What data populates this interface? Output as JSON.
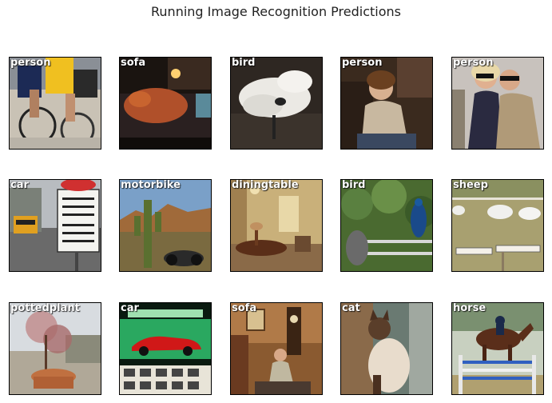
{
  "title": "Running Image Recognition Predictions",
  "predictions": [
    {
      "label": "person",
      "scene": "cyclists-photo"
    },
    {
      "label": "sofa",
      "scene": "dog-on-sofa-photo"
    },
    {
      "label": "bird",
      "scene": "swan-photo"
    },
    {
      "label": "person",
      "scene": "woman-in-bar-photo"
    },
    {
      "label": "person",
      "scene": "party-people-photo"
    },
    {
      "label": "car",
      "scene": "school-bus-sign-photo"
    },
    {
      "label": "motorbike",
      "scene": "desert-cactus-photo"
    },
    {
      "label": "diningtable",
      "scene": "dining-room-photo"
    },
    {
      "label": "bird",
      "scene": "peacock-photo"
    },
    {
      "label": "sheep",
      "scene": "sheep-field-photo"
    },
    {
      "label": "pottedplant",
      "scene": "potted-tree-photo"
    },
    {
      "label": "car",
      "scene": "red-car-ad-photo"
    },
    {
      "label": "sofa",
      "scene": "woman-in-chair-photo"
    },
    {
      "label": "cat",
      "scene": "siamese-cat-photo"
    },
    {
      "label": "horse",
      "scene": "show-jumping-photo"
    }
  ]
}
